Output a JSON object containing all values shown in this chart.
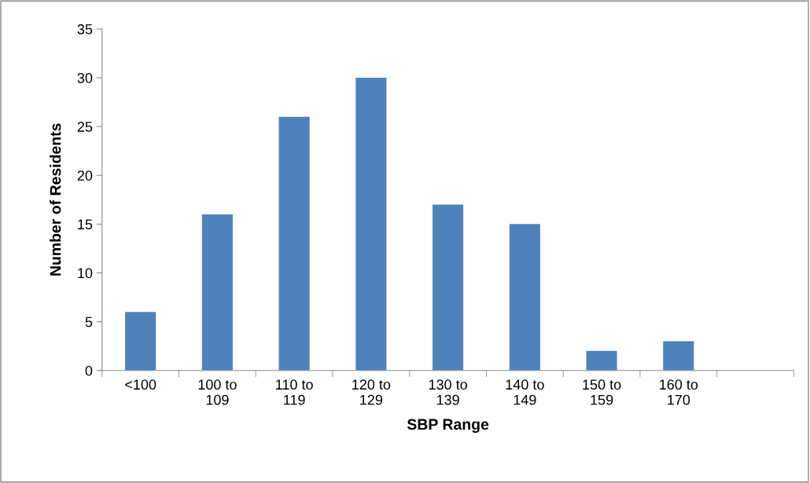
{
  "chart_data": {
    "type": "bar",
    "xlabel": "SBP Range",
    "ylabel": "Number of Residents",
    "categories": [
      "<100",
      "100 to\n109",
      "110 to\n119",
      "120 to\n129",
      "130 to\n139",
      "140 to\n149",
      "150 to\n159",
      "160 to\n170",
      null
    ],
    "values": [
      6,
      16,
      26,
      30,
      17,
      15,
      2,
      3,
      null
    ],
    "color": "#4f81bd",
    "ylim": [
      0,
      35
    ],
    "yticks": [
      0,
      5,
      10,
      15,
      20,
      25,
      30,
      35
    ],
    "grid": false,
    "legend": false
  }
}
